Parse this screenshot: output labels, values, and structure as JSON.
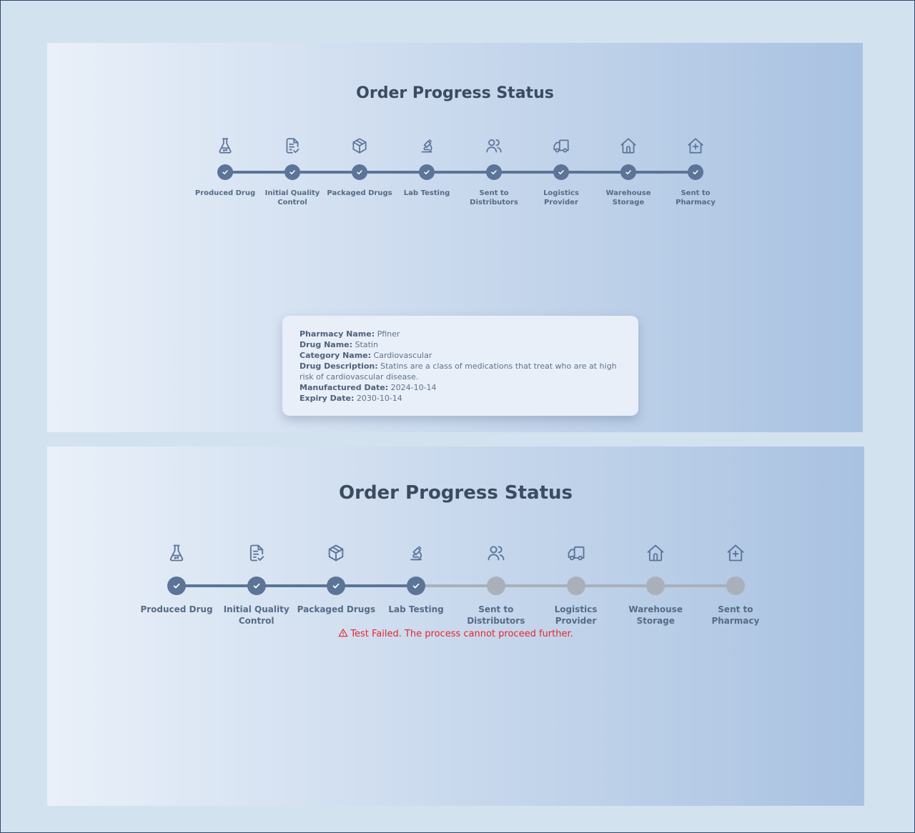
{
  "colors": {
    "completed": "#5b7497",
    "pending": "#a9b0ba",
    "error": "#e5262f",
    "title": "#3b4b60"
  },
  "panel1": {
    "title": "Order Progress Status",
    "steps": [
      {
        "label": "Produced Drug",
        "icon": "flask-icon",
        "status": "completed"
      },
      {
        "label": "Initial Quality Control",
        "icon": "document-check-icon",
        "status": "completed"
      },
      {
        "label": "Packaged Drugs",
        "icon": "package-icon",
        "status": "completed"
      },
      {
        "label": "Lab Testing",
        "icon": "microscope-icon",
        "status": "completed"
      },
      {
        "label": "Sent to Distributors",
        "icon": "users-icon",
        "status": "completed"
      },
      {
        "label": "Logistics Provider",
        "icon": "truck-icon",
        "status": "completed"
      },
      {
        "label": "Warehouse Storage",
        "icon": "warehouse-icon",
        "status": "completed"
      },
      {
        "label": "Sent to Pharmacy",
        "icon": "pharmacy-icon",
        "status": "completed"
      }
    ],
    "info": {
      "pharmacy_name_label": "Pharmacy Name:",
      "pharmacy_name": "Pfiner",
      "drug_name_label": "Drug Name:",
      "drug_name": "Statin",
      "category_label": "Category Name:",
      "category": "Cardiovascular",
      "description_label": "Drug Description:",
      "description": "Statins are a class of medications that treat who are at high risk of cardiovascular disease.",
      "manufactured_label": "Manufactured Date:",
      "manufactured": "2024-10-14",
      "expiry_label": "Expiry Date:",
      "expiry": "2030-10-14"
    }
  },
  "panel2": {
    "title": "Order Progress Status",
    "steps": [
      {
        "label": "Produced Drug",
        "icon": "flask-icon",
        "status": "completed"
      },
      {
        "label": "Initial Quality Control",
        "icon": "document-check-icon",
        "status": "completed"
      },
      {
        "label": "Packaged Drugs",
        "icon": "package-icon",
        "status": "completed"
      },
      {
        "label": "Lab Testing",
        "icon": "microscope-icon",
        "status": "completed"
      },
      {
        "label": "Sent to Distributors",
        "icon": "users-icon",
        "status": "pending"
      },
      {
        "label": "Logistics Provider",
        "icon": "truck-icon",
        "status": "pending"
      },
      {
        "label": "Warehouse Storage",
        "icon": "warehouse-icon",
        "status": "pending"
      },
      {
        "label": "Sent to Pharmacy",
        "icon": "pharmacy-icon",
        "status": "pending"
      }
    ],
    "error_message": "Test Failed. The process cannot proceed further."
  }
}
